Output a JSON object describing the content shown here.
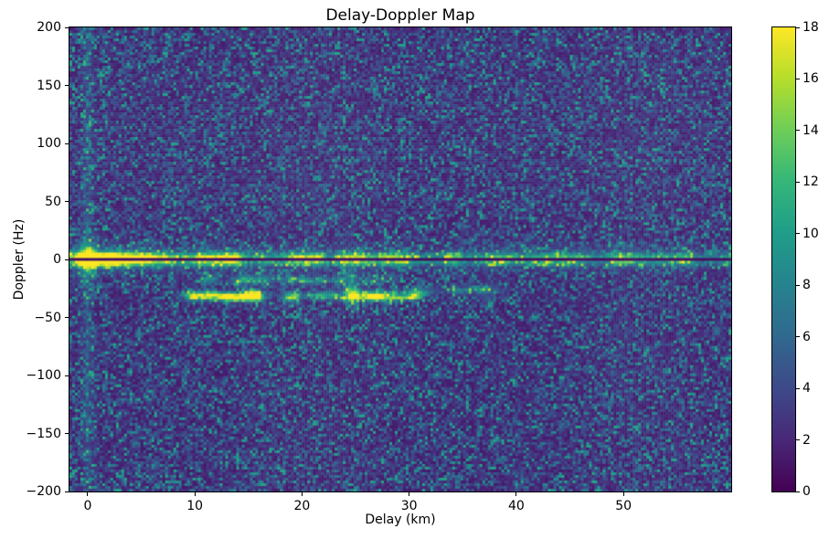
{
  "chart_data": {
    "type": "heatmap",
    "title": "Delay-Doppler Map",
    "xlabel": "Delay (km)",
    "ylabel": "Doppler (Hz)",
    "x_range": [
      -1.7,
      60.05
    ],
    "y_range": [
      -200,
      200
    ],
    "x_ticks": [
      0,
      10,
      20,
      30,
      40,
      50
    ],
    "y_ticks": [
      200,
      150,
      100,
      50,
      0,
      -50,
      -100,
      -150,
      -200
    ],
    "grid": false,
    "axis_color": "#000000",
    "background_color": "#ffffff",
    "colorbar": {
      "min": 0,
      "max": 18,
      "ticks": [
        18,
        16,
        14,
        12,
        10,
        8,
        6,
        4,
        2,
        0
      ],
      "position": "right"
    },
    "colormap": {
      "name": "viridis",
      "stops": [
        [
          0.0,
          "#440154"
        ],
        [
          0.11,
          "#482878"
        ],
        [
          0.22,
          "#3e4989"
        ],
        [
          0.33,
          "#31688e"
        ],
        [
          0.44,
          "#26828e"
        ],
        [
          0.56,
          "#1f9e89"
        ],
        [
          0.67,
          "#35b779"
        ],
        [
          0.78,
          "#6ece58"
        ],
        [
          0.89,
          "#b5de2b"
        ],
        [
          1.0,
          "#fde725"
        ]
      ]
    },
    "seed": 7,
    "features": {
      "noise": {
        "floor": 1.2,
        "scale": 2.7,
        "clamp": 10.5
      },
      "ridge": {
        "doppler_center": 1.8,
        "sigma_hz": 2.6,
        "amp_base": 5.5,
        "amp_extra": 9.5,
        "decay_km": 16,
        "halo_scale": 0.35,
        "halo_sigma_hz": 7,
        "mod_min": 0.5,
        "mod_span": 0.95,
        "mod_step_cells": 5
      },
      "sub_ridge": {
        "doppler_center": -3.2,
        "sigma_hz": 2.0,
        "scale": 0.6
      },
      "dark_line": {
        "doppler_hz": 0,
        "half_width_hz": 1.1,
        "value": 0.5
      },
      "flare": {
        "delay_km": 0,
        "sigma_delay_km": 0.55,
        "core_amp": 15,
        "core_sigma_hz": 4.5,
        "amp": 6,
        "sigma_doppler_hz": 12
      },
      "stripe": {
        "delay_km": 0,
        "sigma_delay_km": 0.35,
        "amp": 2.0
      },
      "echo_bands": [
        {
          "doppler_hz": -32,
          "doppler_jitter_hz": 3.5,
          "delay_min_km": 9.5,
          "delay_max_km": 31,
          "count": 46,
          "amp_min": 2.5,
          "amp_max": 6.5
        },
        {
          "doppler_hz": -18,
          "doppler_jitter_hz": 3.0,
          "delay_min_km": 11,
          "delay_max_km": 28,
          "count": 26,
          "amp_min": 1.2,
          "amp_max": 3.0
        },
        {
          "doppler_hz": -27,
          "doppler_jitter_hz": 4.0,
          "delay_min_km": 31,
          "delay_max_km": 38.5,
          "count": 12,
          "amp_min": 1.2,
          "amp_max": 2.8
        }
      ],
      "echo_blobs": [
        {
          "delay_km": 24.6,
          "doppler_hz": -30,
          "amp": 9.0,
          "sigma_delay_km": 0.5,
          "sigma_doppler_hz": 6
        },
        {
          "delay_km": 24.6,
          "doppler_hz": -14,
          "amp": 4.0,
          "sigma_delay_km": 0.4,
          "sigma_doppler_hz": 5
        }
      ]
    }
  }
}
